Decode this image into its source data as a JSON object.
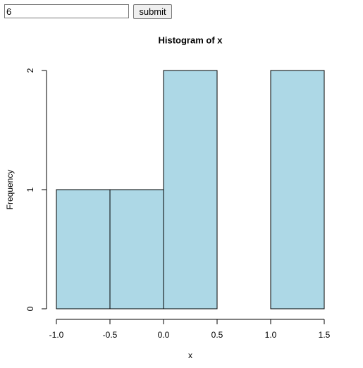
{
  "form": {
    "input_value": "6",
    "button": "submit"
  },
  "chart_data": {
    "type": "histogram",
    "title": "Histogram of x",
    "xlabel": "x",
    "ylabel": "Frequency",
    "bins": [
      -1,
      -0.5,
      0,
      0.5,
      1,
      1.5
    ],
    "values": [
      1,
      1,
      2,
      0,
      2
    ],
    "color": "#add8e6",
    "xlim": [
      -1,
      1.5
    ],
    "ylim": [
      0,
      2
    ],
    "xticks": [
      {
        "value": -1,
        "label": "-1.0"
      },
      -0.5,
      {
        "value": 0,
        "label": "0.0"
      },
      0.5,
      {
        "value": 1,
        "label": "1.0"
      },
      1.5
    ],
    "yticks": [
      0,
      1,
      2
    ]
  }
}
